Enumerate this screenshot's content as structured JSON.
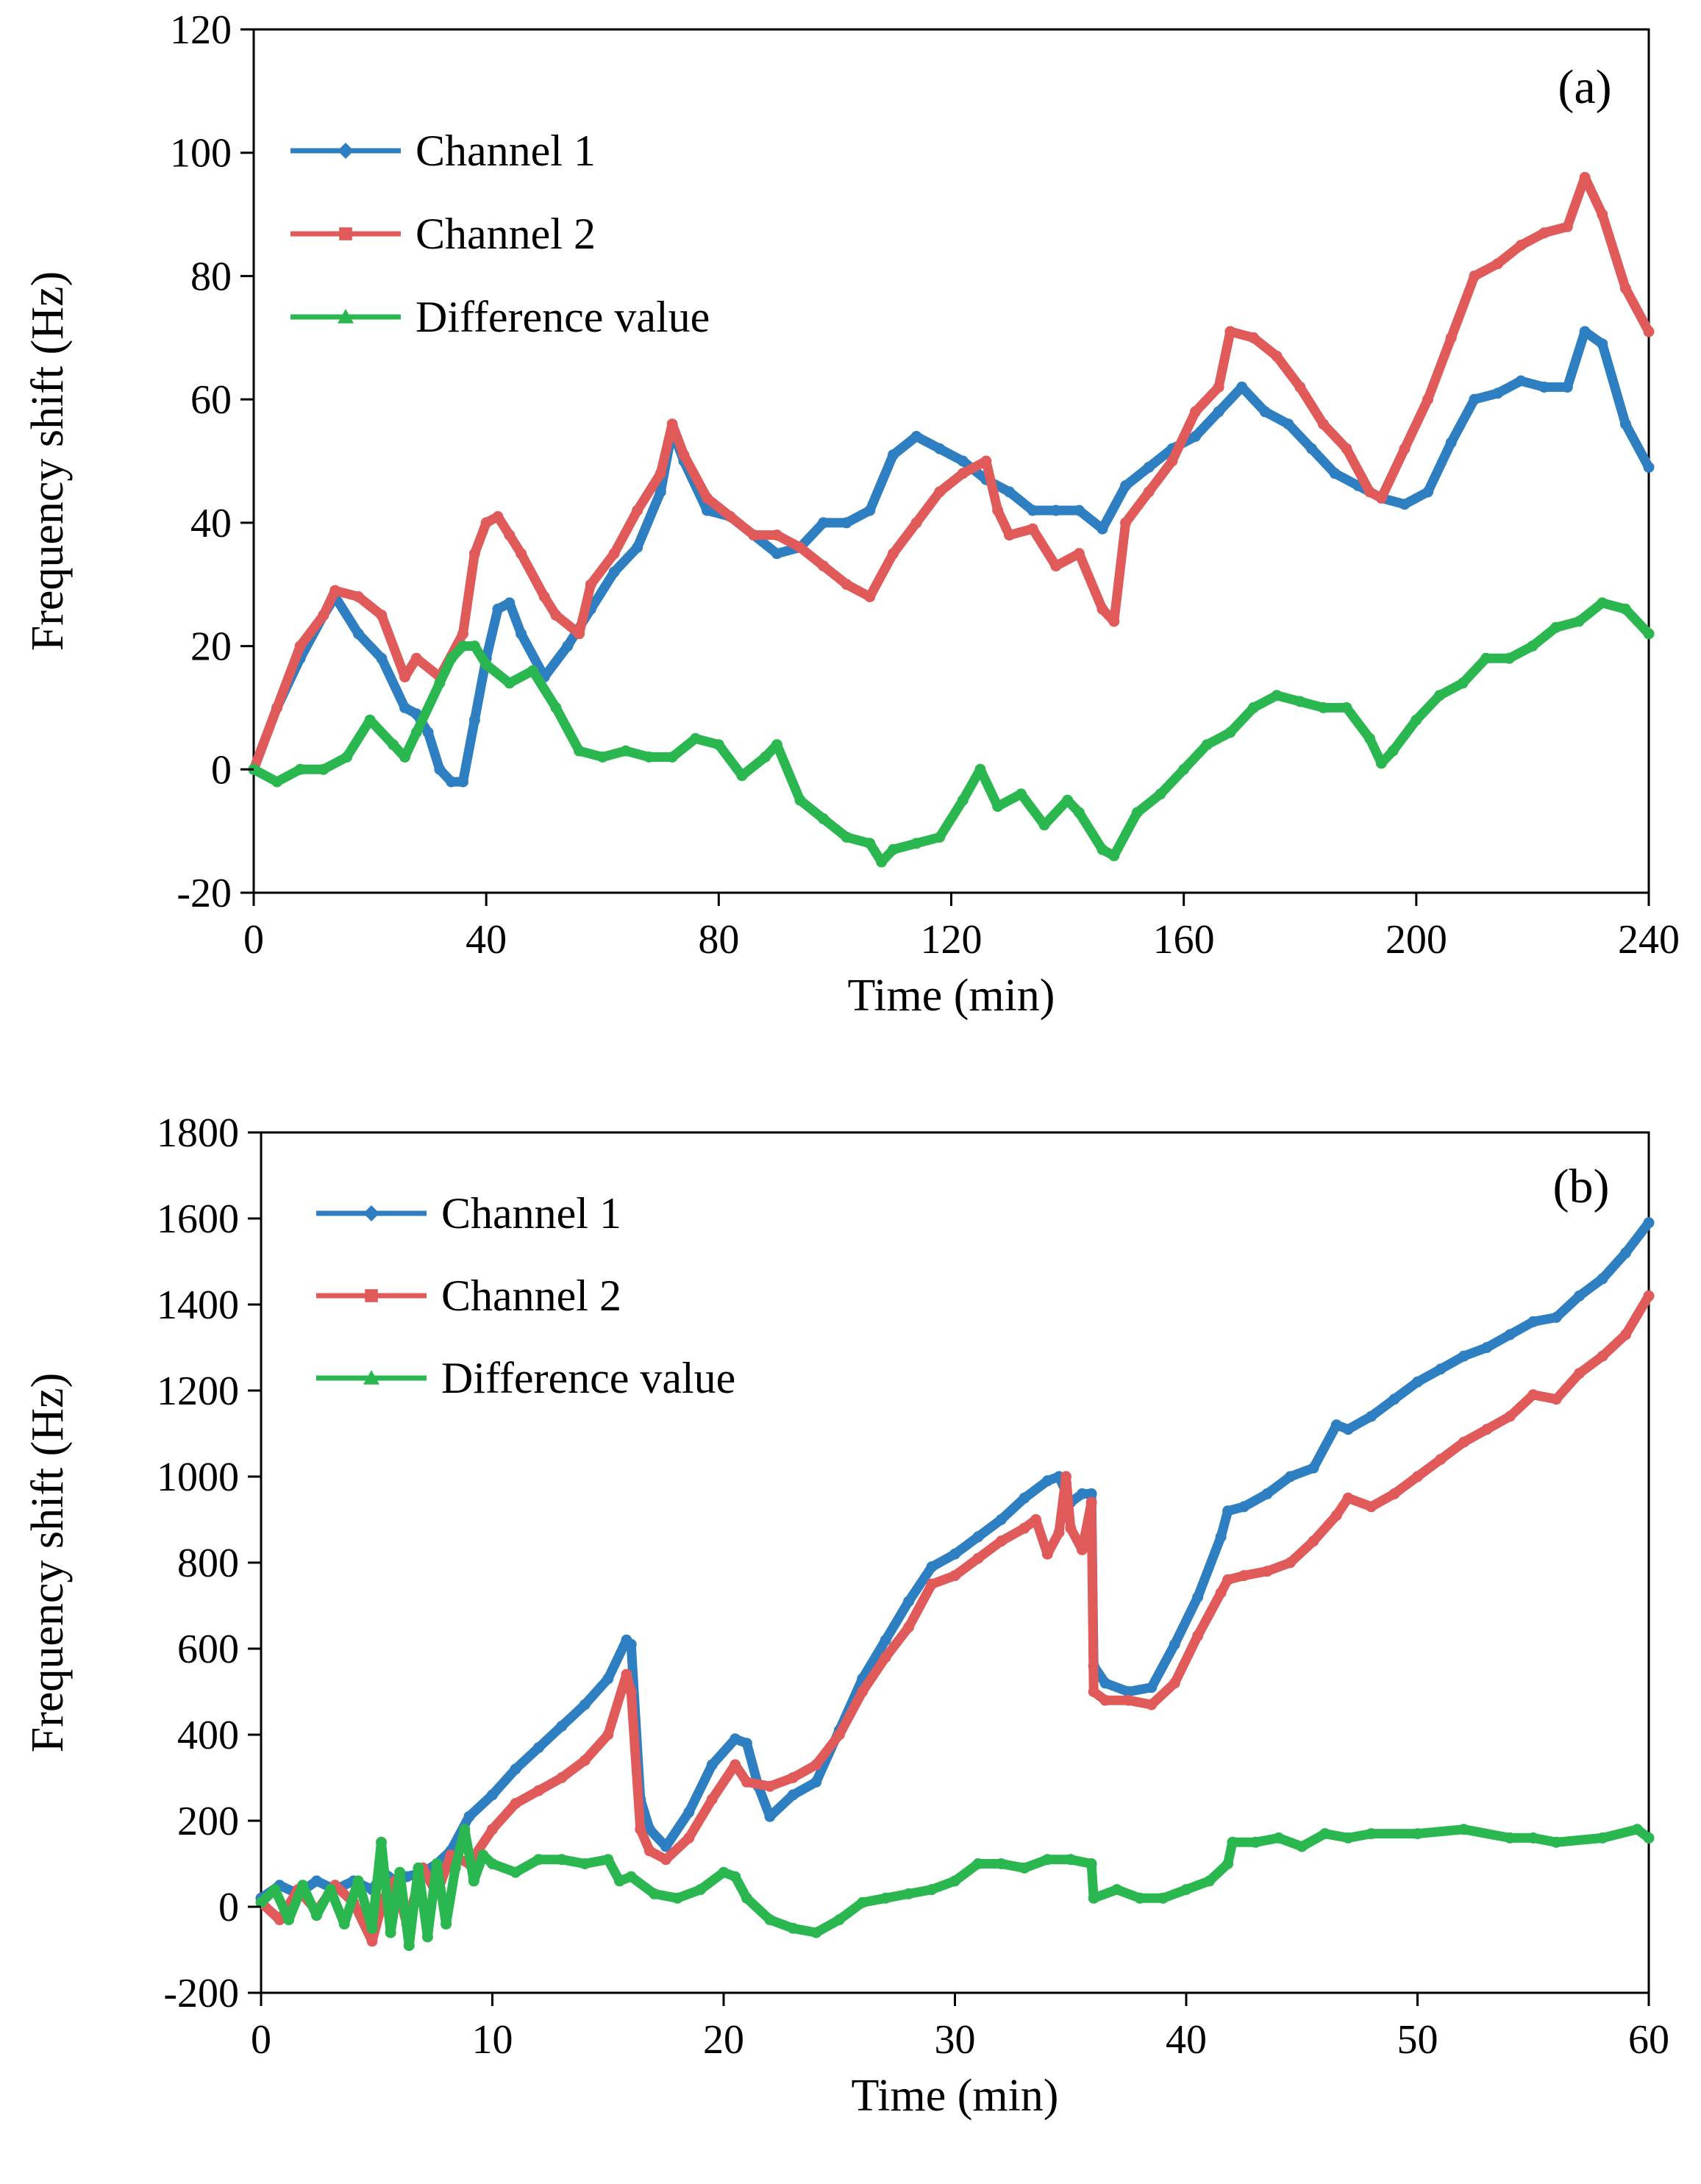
{
  "chart_data": [
    {
      "type": "line",
      "panel_label": "(a)",
      "xlabel": "Time (min)",
      "ylabel": "Frequency shift (Hz)",
      "xlim": [
        0,
        240
      ],
      "ylim": [
        -20,
        120
      ],
      "xticks": [
        0,
        40,
        80,
        120,
        160,
        200,
        240
      ],
      "yticks": [
        -20,
        0,
        20,
        40,
        60,
        80,
        100,
        120
      ],
      "grid": false,
      "legend_position": "top-left",
      "series": [
        {
          "name": "Channel 1",
          "color": "#2E7FC2",
          "marker": "diamond",
          "x": [
            0,
            4,
            8,
            12,
            14,
            18,
            22,
            26,
            28,
            30,
            32,
            34,
            36,
            38,
            40,
            42,
            44,
            46,
            50,
            54,
            58,
            62,
            66,
            70,
            72,
            74,
            78,
            82,
            86,
            90,
            94,
            98,
            102,
            106,
            110,
            114,
            118,
            122,
            126,
            130,
            134,
            138,
            142,
            146,
            150,
            154,
            158,
            162,
            166,
            170,
            174,
            178,
            182,
            186,
            190,
            194,
            198,
            202,
            206,
            210,
            214,
            218,
            222,
            226,
            229,
            232,
            236,
            240
          ],
          "y": [
            0,
            10,
            18,
            25,
            28,
            22,
            18,
            10,
            9,
            6,
            0,
            -2,
            -2,
            8,
            18,
            26,
            27,
            22,
            15,
            20,
            26,
            32,
            36,
            45,
            55,
            50,
            42,
            41,
            38,
            35,
            36,
            40,
            40,
            42,
            51,
            54,
            52,
            50,
            47,
            45,
            42,
            42,
            42,
            39,
            46,
            49,
            52,
            54,
            58,
            62,
            58,
            56,
            52,
            48,
            46,
            44,
            43,
            45,
            53,
            60,
            61,
            63,
            62,
            62,
            71,
            69,
            56,
            49
          ]
        },
        {
          "name": "Channel 2",
          "color": "#E05A5A",
          "marker": "square",
          "x": [
            0,
            4,
            8,
            12,
            14,
            18,
            22,
            26,
            28,
            32,
            36,
            38,
            40,
            42,
            44,
            46,
            50,
            52,
            56,
            58,
            62,
            66,
            70,
            72,
            74,
            78,
            82,
            86,
            90,
            94,
            98,
            102,
            106,
            110,
            114,
            118,
            122,
            126,
            128,
            130,
            134,
            138,
            142,
            146,
            148,
            150,
            154,
            158,
            162,
            166,
            168,
            172,
            176,
            180,
            184,
            188,
            192,
            194,
            198,
            202,
            206,
            210,
            214,
            218,
            222,
            226,
            229,
            232,
            236,
            240
          ],
          "y": [
            0,
            10,
            20,
            25,
            29,
            28,
            25,
            15,
            18,
            15,
            22,
            35,
            40,
            41,
            38,
            35,
            28,
            25,
            22,
            30,
            35,
            42,
            48,
            56,
            51,
            44,
            41,
            38,
            38,
            36,
            33,
            30,
            28,
            35,
            40,
            45,
            48,
            50,
            42,
            38,
            39,
            33,
            35,
            26,
            24,
            40,
            45,
            50,
            58,
            62,
            71,
            70,
            67,
            62,
            56,
            52,
            45,
            44,
            52,
            60,
            70,
            80,
            82,
            85,
            87,
            88,
            96,
            90,
            78,
            71
          ]
        },
        {
          "name": "Difference value",
          "color": "#2BB74F",
          "marker": "triangle",
          "x": [
            0,
            4,
            8,
            12,
            16,
            20,
            24,
            26,
            28,
            32,
            34,
            36,
            38,
            40,
            44,
            48,
            52,
            56,
            60,
            64,
            68,
            72,
            76,
            80,
            84,
            88,
            90,
            94,
            98,
            102,
            106,
            108,
            110,
            114,
            118,
            122,
            125,
            128,
            132,
            136,
            140,
            142,
            146,
            148,
            152,
            156,
            160,
            164,
            168,
            172,
            176,
            180,
            184,
            188,
            192,
            194,
            196,
            200,
            204,
            208,
            212,
            216,
            220,
            224,
            228,
            232,
            236,
            240
          ],
          "y": [
            0,
            -2,
            0,
            0,
            2,
            8,
            4,
            2,
            6,
            14,
            18,
            20,
            20,
            17,
            14,
            16,
            10,
            3,
            2,
            3,
            2,
            2,
            5,
            4,
            -1,
            2,
            4,
            -5,
            -8,
            -11,
            -12,
            -15,
            -13,
            -12,
            -11,
            -5,
            0,
            -6,
            -4,
            -9,
            -5,
            -7,
            -13,
            -14,
            -7,
            -4,
            0,
            4,
            6,
            10,
            12,
            11,
            10,
            10,
            5,
            1,
            3,
            8,
            12,
            14,
            18,
            18,
            20,
            23,
            24,
            27,
            26,
            22
          ]
        }
      ]
    },
    {
      "type": "line",
      "panel_label": "(b)",
      "xlabel": "Time (min)",
      "ylabel": "Frequency shift (Hz)",
      "xlim": [
        0,
        60
      ],
      "ylim": [
        -200,
        1800
      ],
      "xticks": [
        0,
        10,
        20,
        30,
        40,
        50,
        60
      ],
      "yticks": [
        -200,
        0,
        200,
        400,
        600,
        800,
        1000,
        1200,
        1400,
        1600,
        1800
      ],
      "grid": false,
      "legend_position": "top-left",
      "series": [
        {
          "name": "Channel 1",
          "color": "#2E7FC2",
          "marker": "diamond",
          "x": [
            0,
            0.8,
            1.6,
            2.4,
            3.2,
            4.0,
            4.8,
            5.3,
            5.8,
            6.3,
            7.0,
            7.6,
            8.2,
            9.0,
            10.0,
            11.0,
            12.0,
            13.0,
            14.0,
            15.0,
            15.8,
            16.0,
            16.4,
            16.8,
            17.5,
            18.5,
            19.5,
            20.5,
            21.0,
            21.5,
            22.0,
            23.0,
            24.0,
            25.0,
            26.0,
            27.0,
            28.0,
            29.0,
            30.0,
            31.0,
            32.0,
            33.0,
            34.0,
            34.5,
            35.0,
            35.5,
            35.9,
            36.0,
            36.5,
            37.5,
            38.5,
            39.5,
            40.5,
            41.5,
            41.8,
            42.5,
            43.5,
            44.5,
            45.5,
            46.5,
            47.0,
            48.0,
            49.0,
            50.0,
            51.0,
            52.0,
            53.0,
            54.0,
            55.0,
            56.0,
            57.0,
            58.0,
            59.0,
            60.0
          ],
          "y": [
            20,
            50,
            30,
            60,
            40,
            60,
            40,
            80,
            60,
            70,
            80,
            100,
            130,
            210,
            260,
            320,
            370,
            420,
            470,
            530,
            620,
            610,
            250,
            180,
            140,
            220,
            330,
            390,
            380,
            280,
            210,
            260,
            290,
            410,
            530,
            620,
            710,
            790,
            820,
            860,
            900,
            950,
            990,
            1000,
            940,
            960,
            960,
            560,
            520,
            500,
            510,
            610,
            720,
            860,
            920,
            930,
            960,
            1000,
            1020,
            1120,
            1110,
            1140,
            1180,
            1220,
            1250,
            1280,
            1300,
            1330,
            1360,
            1370,
            1420,
            1460,
            1520,
            1590
          ]
        },
        {
          "name": "Channel 2",
          "color": "#E05A5A",
          "marker": "square",
          "x": [
            0,
            0.8,
            1.6,
            2.4,
            3.2,
            4.0,
            4.8,
            5.3,
            5.8,
            6.3,
            7.0,
            7.6,
            8.2,
            9.0,
            10.0,
            11.0,
            12.0,
            13.0,
            14.0,
            15.0,
            15.8,
            16.0,
            16.4,
            16.8,
            17.5,
            18.5,
            19.5,
            20.5,
            21.0,
            22.0,
            23.0,
            24.0,
            25.0,
            26.0,
            27.0,
            28.0,
            29.0,
            30.0,
            31.0,
            32.0,
            33.0,
            33.5,
            34.0,
            34.5,
            34.8,
            35.0,
            35.5,
            35.9,
            36.0,
            36.5,
            37.5,
            38.5,
            39.5,
            40.5,
            41.5,
            41.8,
            42.5,
            43.5,
            44.5,
            45.5,
            46.5,
            47.0,
            48.0,
            49.0,
            50.0,
            51.0,
            52.0,
            53.0,
            54.0,
            55.0,
            56.0,
            57.0,
            58.0,
            59.0,
            60.0
          ],
          "y": [
            10,
            -30,
            40,
            -10,
            50,
            10,
            -80,
            20,
            60,
            -40,
            90,
            30,
            120,
            100,
            180,
            240,
            270,
            300,
            340,
            400,
            540,
            500,
            180,
            130,
            110,
            160,
            250,
            330,
            290,
            280,
            300,
            330,
            400,
            500,
            580,
            650,
            750,
            770,
            810,
            850,
            880,
            900,
            820,
            870,
            1000,
            880,
            830,
            940,
            500,
            480,
            480,
            470,
            520,
            630,
            730,
            760,
            770,
            780,
            800,
            850,
            910,
            950,
            930,
            960,
            1000,
            1040,
            1080,
            1110,
            1140,
            1190,
            1180,
            1240,
            1280,
            1330,
            1420
          ]
        },
        {
          "name": "Difference value",
          "color": "#2BB74F",
          "marker": "triangle",
          "x": [
            0,
            0.6,
            1.2,
            1.8,
            2.4,
            3.0,
            3.6,
            4.2,
            4.8,
            5.2,
            5.6,
            6.0,
            6.4,
            6.8,
            7.2,
            7.6,
            8.0,
            8.4,
            8.8,
            9.2,
            9.6,
            10.0,
            11.0,
            12.0,
            13.0,
            14.0,
            15.0,
            15.5,
            16.0,
            17.0,
            18.0,
            19.0,
            20.0,
            20.5,
            21.0,
            22.0,
            23.0,
            24.0,
            25.0,
            26.0,
            27.0,
            28.0,
            29.0,
            30.0,
            31.0,
            32.0,
            33.0,
            34.0,
            35.0,
            35.9,
            36.0,
            37.0,
            38.0,
            39.0,
            40.0,
            41.0,
            41.8,
            42.0,
            43.0,
            44.0,
            45.0,
            46.0,
            47.0,
            48.0,
            50.0,
            52.0,
            54.0,
            55.0,
            56.0,
            58.0,
            59.5,
            60.0
          ],
          "y": [
            10,
            40,
            -30,
            50,
            -20,
            40,
            -40,
            60,
            -50,
            150,
            -60,
            80,
            -90,
            90,
            -70,
            100,
            -40,
            90,
            180,
            60,
            120,
            100,
            80,
            110,
            110,
            100,
            110,
            60,
            70,
            30,
            20,
            40,
            80,
            70,
            20,
            -30,
            -50,
            -60,
            -30,
            10,
            20,
            30,
            40,
            60,
            100,
            100,
            90,
            110,
            110,
            100,
            20,
            40,
            20,
            20,
            40,
            60,
            100,
            150,
            150,
            160,
            140,
            170,
            160,
            170,
            170,
            180,
            160,
            160,
            150,
            160,
            180,
            160
          ]
        }
      ]
    }
  ]
}
